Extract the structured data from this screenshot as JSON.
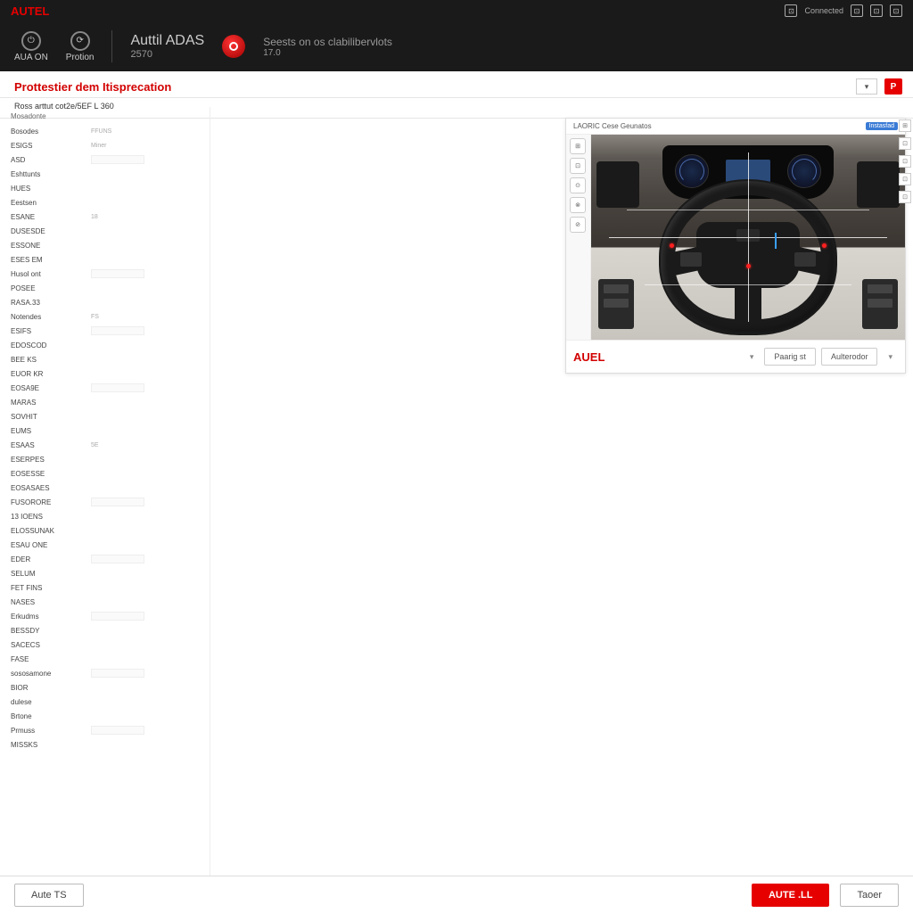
{
  "topbar": {
    "brand": "AUTEL",
    "status": "Connected",
    "icons": [
      "⊡",
      "⊡",
      "⊡"
    ]
  },
  "header": {
    "block1": {
      "icon": "⊙",
      "label": "AUA ON"
    },
    "block2": {
      "icon": "⟳",
      "label": "Protion"
    },
    "title": "Auttil ADAS",
    "version": "2570",
    "subtitle": "Seests on os clabilibervlots",
    "subversion": "17.0"
  },
  "section": {
    "title": "Prottestier dem Itisprecation",
    "subtitle": "Ross arttut cot2e/5EF L 360"
  },
  "toolbar": {
    "dropdown": "▾",
    "flag": "P"
  },
  "sidebar": {
    "heading": "Mosadonte",
    "items": [
      {
        "label": "Bosodes",
        "value": "FFUNS"
      },
      {
        "label": "ESIGS",
        "value": "Miner"
      },
      {
        "label": "ASD",
        "value": ""
      },
      {
        "label": "Eshttunts",
        "value": ""
      },
      {
        "label": "HUES",
        "value": ""
      },
      {
        "label": "Eestsen",
        "value": ""
      },
      {
        "label": "ESANE",
        "value": "18"
      },
      {
        "label": "DUSESDE",
        "value": ""
      },
      {
        "label": "ESSONE",
        "value": ""
      },
      {
        "label": "ESES EM",
        "value": ""
      },
      {
        "label": "Husol ont",
        "value": ""
      },
      {
        "label": "POSEE",
        "value": ""
      },
      {
        "label": "RASA.33",
        "value": ""
      },
      {
        "label": "Notendes",
        "value": "FS"
      },
      {
        "label": "ESIFS",
        "value": ""
      },
      {
        "label": "EDOSCOD",
        "value": ""
      },
      {
        "label": "BEE KS",
        "value": ""
      },
      {
        "label": "EUOR KR",
        "value": ""
      },
      {
        "label": "EOSA9E",
        "value": ""
      },
      {
        "label": "MARAS",
        "value": ""
      },
      {
        "label": "SOVHIT",
        "value": ""
      },
      {
        "label": "EUMS",
        "value": ""
      },
      {
        "label": "ESAAS",
        "value": "5E"
      },
      {
        "label": "ESERPES",
        "value": ""
      },
      {
        "label": "EOSESSE",
        "value": ""
      },
      {
        "label": "EOSASAES",
        "value": ""
      },
      {
        "label": "FUSORORE",
        "value": ""
      },
      {
        "label": "13 IOENS",
        "value": ""
      },
      {
        "label": "ELOSSUNAK",
        "value": ""
      },
      {
        "label": "ESAU ONE",
        "value": ""
      },
      {
        "label": "EDER",
        "value": ""
      },
      {
        "label": "SELUM",
        "value": ""
      },
      {
        "label": "FET FINS",
        "value": ""
      },
      {
        "label": "NASES",
        "value": ""
      },
      {
        "label": "Erkudms",
        "value": ""
      },
      {
        "label": "BESSDY",
        "value": ""
      },
      {
        "label": "SACECS",
        "value": ""
      },
      {
        "label": "FASE",
        "value": ""
      },
      {
        "label": "sososamone",
        "value": ""
      },
      {
        "label": "BIOR",
        "value": ""
      },
      {
        "label": "dulese",
        "value": ""
      },
      {
        "label": "Brtone",
        "value": ""
      },
      {
        "label": "Prmuss",
        "value": ""
      },
      {
        "label": "MISSKS",
        "value": ""
      }
    ]
  },
  "preview": {
    "header_left": "LAORIC Cese Geunatos",
    "header_right": "Instasfad",
    "tools": [
      "⊞",
      "⊡",
      "⊙",
      "⊗",
      "⊘"
    ],
    "side_tools": [
      "⊞",
      "⊡",
      "⊡",
      "⊡",
      "⊡"
    ],
    "footer_brand": "AUEL",
    "footer_btn1": "Paarig st",
    "footer_btn2": "Aulterodor"
  },
  "bottombar": {
    "btn_left": "Aute TS",
    "btn_primary": "AUTE .LL",
    "btn_secondary": "Taoer"
  },
  "colors": {
    "brand_red": "#e60000",
    "header_bg": "#1a1a1a",
    "text_muted": "#999",
    "border": "#ddd"
  }
}
